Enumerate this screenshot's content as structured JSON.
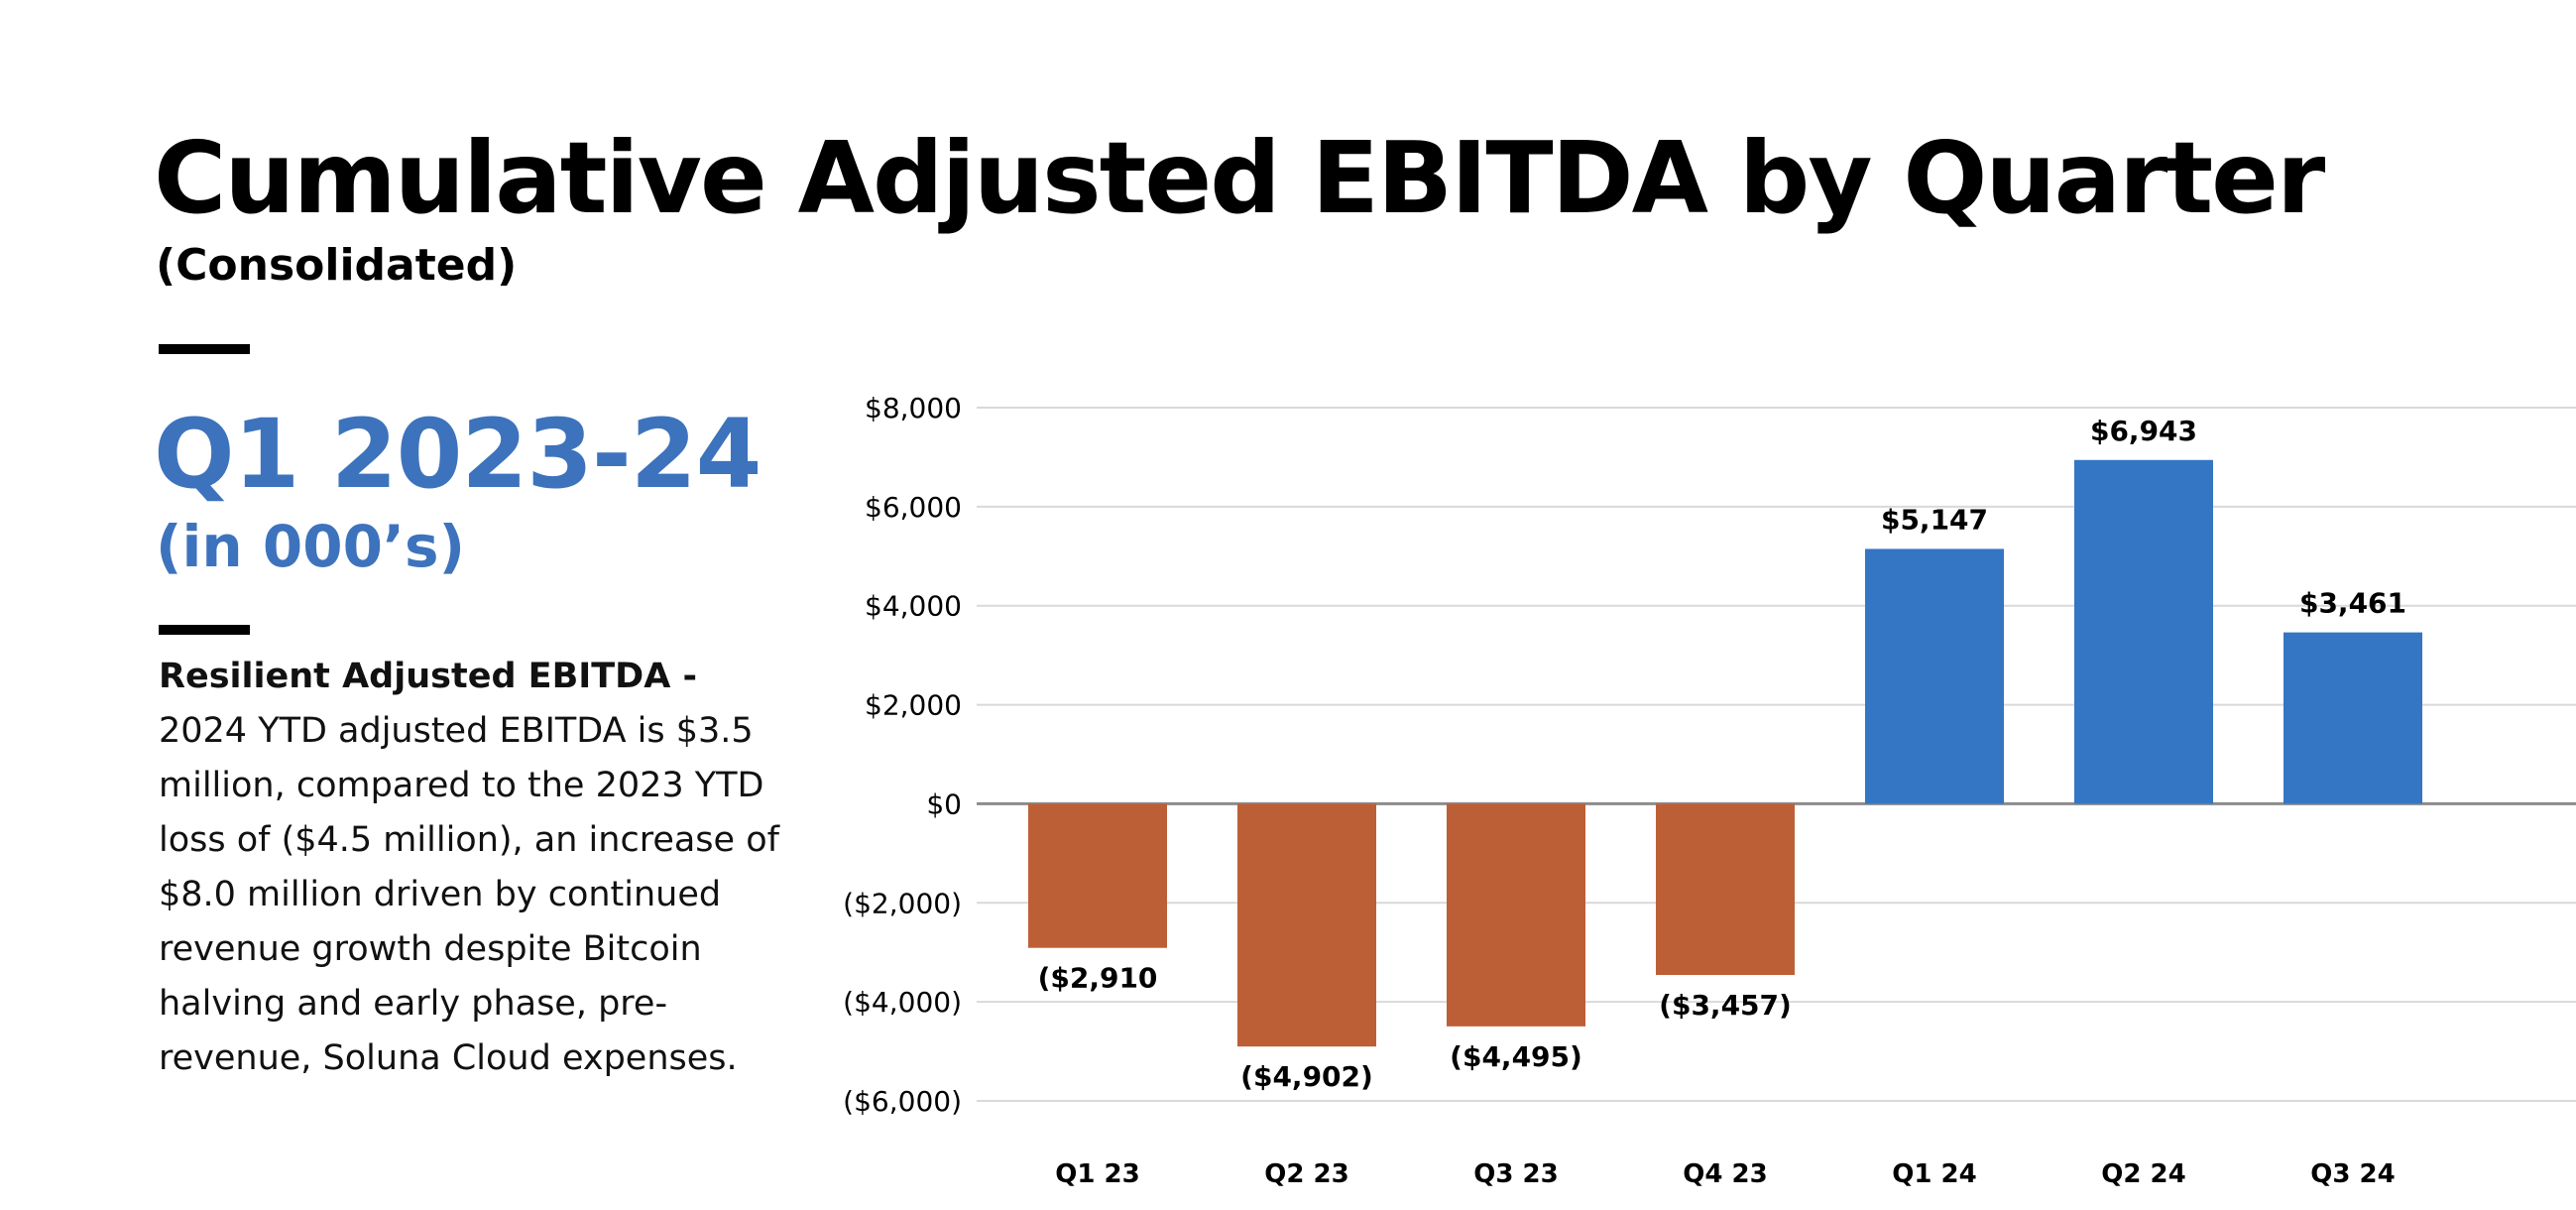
{
  "header": {
    "title": "Cumulative Adjusted EBITDA by Quarter",
    "subtitle": "(Consolidated)"
  },
  "summary": {
    "period": "Q1 2023-24",
    "unit": "(in 000’s)",
    "lead": "Resilient Adjusted EBITDA - ",
    "text": "2024 YTD adjusted EBITDA is $3.5 million, compared to the 2023 YTD loss of ($4.5 million), an increase of $8.0 million driven by continued revenue growth despite Bitcoin halving and early phase, pre-revenue, Soluna Cloud expenses."
  },
  "colors": {
    "negative": "#bc5f37",
    "positive": "#3475c4",
    "accent": "#3d73bd",
    "grid": "#d9d9d9",
    "zero_line": "#8c8c8c"
  },
  "chart_data": {
    "type": "bar",
    "title": "Cumulative Adjusted EBITDA by Quarter",
    "categories": [
      "Q1 23",
      "Q2 23",
      "Q3 23",
      "Q4 23",
      "Q1 24",
      "Q2 24",
      "Q3 24"
    ],
    "values": [
      -2910,
      -4902,
      -4495,
      -3457,
      5147,
      6943,
      3461
    ],
    "data_labels": [
      "($2,910",
      "($4,902)",
      "($4,495)",
      "($3,457)",
      "$5,147",
      "$6,943",
      "$3,461"
    ],
    "ylim": [
      -6000,
      8000
    ],
    "yticks": [
      8000,
      6000,
      4000,
      2000,
      0,
      -2000,
      -4000,
      -6000
    ],
    "ytick_labels": [
      "$8,000",
      "$6,000",
      "$4,000",
      "$2,000",
      "$0",
      "($2,000)",
      "($4,000)",
      "($6,000)"
    ],
    "grid": true,
    "xlabel": "",
    "ylabel": ""
  }
}
